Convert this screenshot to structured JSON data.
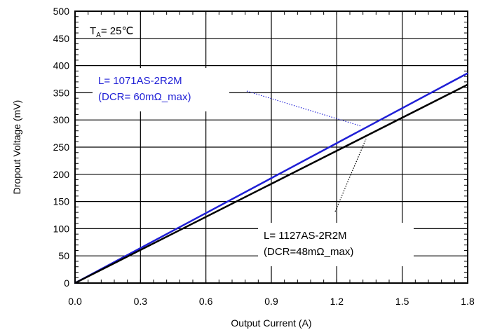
{
  "chart_data": {
    "type": "line",
    "title": "",
    "xlabel": "Output Current (A)",
    "ylabel": "Dropout Voltage (mV)",
    "xlim": [
      0.0,
      1.8
    ],
    "ylim": [
      0,
      500
    ],
    "x_ticks": [
      "0.0",
      "0.3",
      "0.6",
      "0.9",
      "1.2",
      "1.5",
      "1.8"
    ],
    "y_ticks": [
      "0",
      "50",
      "100",
      "150",
      "200",
      "250",
      "300",
      "350",
      "400",
      "450",
      "500"
    ],
    "grid": true,
    "condition_label": {
      "main": "T",
      "sub": "A",
      "rest": "= 25℃"
    },
    "series": [
      {
        "name": "L= 1071AS-2R2M (DCR= 60mΩ_max)",
        "color": "#1f1fd6",
        "x": [
          0.0,
          1.8
        ],
        "y": [
          0,
          386
        ]
      },
      {
        "name": "L= 1127AS-2R2M (DCR=48mΩ_max)",
        "color": "#000000",
        "x": [
          0.0,
          1.8
        ],
        "y": [
          0,
          365
        ]
      }
    ],
    "annotations": [
      {
        "lines": [
          "L= 1071AS-2R2M",
          "(DCR= 60mΩ_max)"
        ],
        "color": "#1f1fd6",
        "series": 0
      },
      {
        "lines": [
          "L= 1127AS-2R2M",
          "(DCR=48mΩ_max)"
        ],
        "color": "#000000",
        "series": 1
      }
    ]
  }
}
